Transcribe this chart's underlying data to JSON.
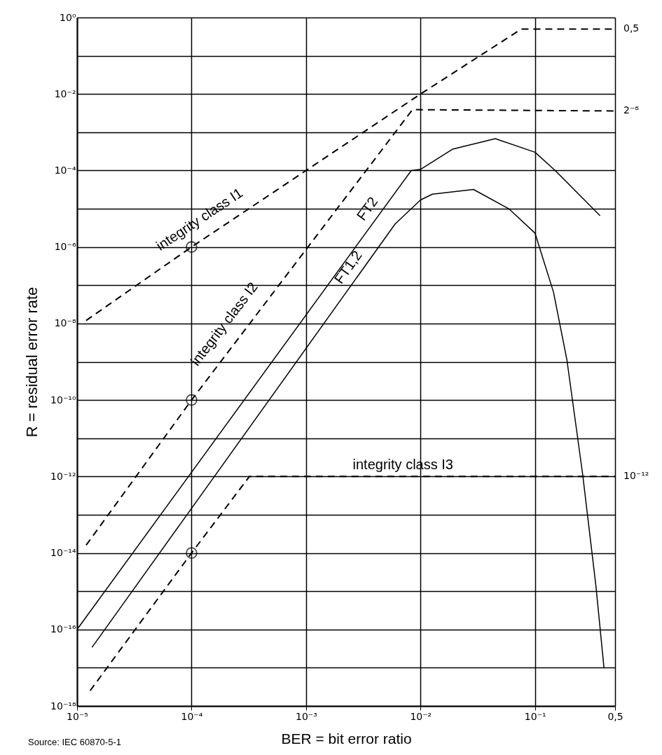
{
  "chart_data": {
    "type": "line",
    "xlabel": "BER = bit error ratio",
    "ylabel": "R = residual error rate",
    "log": "xy",
    "grid": true,
    "legend": false,
    "xlim": [
      1e-05,
      0.5
    ],
    "ylim": [
      1e-18,
      1
    ],
    "xticks": [
      {
        "value": 1e-05,
        "label": "10⁻⁵"
      },
      {
        "value": 0.0001,
        "label": "10⁻⁴"
      },
      {
        "value": 0.001,
        "label": "10⁻³"
      },
      {
        "value": 0.01,
        "label": "10⁻²"
      },
      {
        "value": 0.1,
        "label": "10⁻¹"
      },
      {
        "value": 0.5,
        "label": "0,5"
      }
    ],
    "yticks": [
      {
        "value": 1e-18,
        "label": "10⁻¹⁸"
      },
      {
        "value": 1e-17,
        "label": null
      },
      {
        "value": 1e-16,
        "label": "10⁻¹⁶"
      },
      {
        "value": 1e-15,
        "label": null
      },
      {
        "value": 1e-14,
        "label": "10⁻¹⁴"
      },
      {
        "value": 1e-13,
        "label": null
      },
      {
        "value": 1e-12,
        "label": "10⁻¹²"
      },
      {
        "value": 1e-11,
        "label": null
      },
      {
        "value": 1e-10,
        "label": "10⁻¹⁰"
      },
      {
        "value": 1e-09,
        "label": null
      },
      {
        "value": 1e-08,
        "label": "10⁻⁸"
      },
      {
        "value": 1e-07,
        "label": null
      },
      {
        "value": 1e-06,
        "label": "10⁻⁶"
      },
      {
        "value": 1e-05,
        "label": null
      },
      {
        "value": 0.0001,
        "label": "10⁻⁴"
      },
      {
        "value": 0.001,
        "label": null
      },
      {
        "value": 0.01,
        "label": "10⁻²"
      },
      {
        "value": 0.1,
        "label": null
      },
      {
        "value": 1,
        "label": "10⁰"
      }
    ],
    "series": [
      {
        "name": "integrity class I1",
        "line_style": "dashed",
        "color": "#000000",
        "x": [
          1.2e-05,
          0.0001,
          0.01,
          0.076,
          0.5
        ],
        "values": [
          1.2e-08,
          1e-06,
          0.01,
          0.5,
          0.5
        ]
      },
      {
        "name": "integrity class I2",
        "line_style": "dashed",
        "color": "#000000",
        "x": [
          1.2e-05,
          0.0001,
          0.0085,
          0.5
        ],
        "values": [
          1.6e-14,
          1e-10,
          0.0039,
          0.0036
        ]
      },
      {
        "name": "integrity class I3",
        "line_style": "dashed",
        "color": "#000000",
        "x": [
          1.3e-05,
          0.0001,
          0.00032,
          0.5
        ],
        "values": [
          2.5e-18,
          1e-14,
          1e-12,
          1e-12
        ]
      },
      {
        "name": "FT2",
        "line_style": "solid",
        "color": "#000000",
        "x": [
          1e-05,
          0.0083,
          0.01,
          0.019,
          0.045,
          0.1,
          0.15,
          0.37
        ],
        "values": [
          1e-16,
          0.0001,
          0.000107,
          0.00036,
          0.00068,
          0.0003,
          0.0001,
          6.6e-06
        ]
      },
      {
        "name": "FT1,2",
        "line_style": "solid",
        "color": "#000000",
        "x": [
          1.35e-05,
          0.006,
          0.01,
          0.0127,
          0.029,
          0.059,
          0.1,
          0.145,
          0.19,
          0.26,
          0.34,
          0.4
        ],
        "values": [
          3.4e-17,
          4e-06,
          1.7e-05,
          2.4e-05,
          3.2e-05,
          1e-05,
          2.3e-06,
          6.6e-08,
          1.1e-09,
          1.2e-12,
          1.4e-15,
          1e-17
        ]
      },
      {
        "type": "scatter",
        "marker": "circle",
        "color": "#000000",
        "x": [
          0.0001,
          0.0001,
          0.0001
        ],
        "values": [
          1e-06,
          1e-10,
          1e-14
        ]
      }
    ],
    "annotations": [
      "0,5",
      "2⁻⁸",
      "10⁻¹²",
      "Source: IEC 60870-5-1"
    ]
  }
}
